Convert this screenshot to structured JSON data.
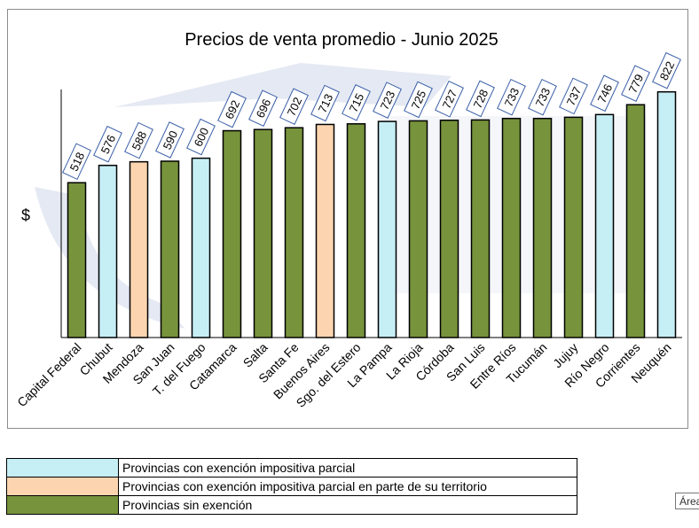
{
  "chart_data": {
    "type": "bar",
    "title": "Precios de venta promedio - Junio 2025",
    "ylabel": "$",
    "xlabel": "",
    "ylim": [
      0,
      830
    ],
    "categories": [
      "Capital Federal",
      "Chubut",
      "Mendoza",
      "San Juan",
      "T. del Fuego",
      "Catamarca",
      "Salta",
      "Santa Fe",
      "Buenos Aires",
      "Sgo. del Estero",
      "La Pampa",
      "La Rioja",
      "Córdoba",
      "San Luis",
      "Entre Ríos",
      "Tucumán",
      "Jujuy",
      "Río Negro",
      "Corrientes",
      "Neuquén"
    ],
    "values": [
      518,
      576,
      588,
      590,
      600,
      692,
      696,
      702,
      713,
      715,
      723,
      725,
      727,
      728,
      733,
      733,
      737,
      746,
      779,
      822
    ],
    "groups": [
      "sin",
      "parcial",
      "territorio",
      "sin",
      "parcial",
      "sin",
      "sin",
      "sin",
      "territorio",
      "sin",
      "parcial",
      "sin",
      "sin",
      "sin",
      "sin",
      "sin",
      "sin",
      "parcial",
      "sin",
      "parcial"
    ],
    "grid": false
  },
  "colors": {
    "parcial": "#c6eef5",
    "territorio": "#fcd5b0",
    "sin": "#77933c"
  },
  "legend": {
    "items": [
      {
        "key": "parcial",
        "label": "Provincias con exención impositiva parcial"
      },
      {
        "key": "territorio",
        "label": "Provincias con exención impositiva parcial en parte de su territorio"
      },
      {
        "key": "sin",
        "label": "Provincias sin exención"
      }
    ]
  },
  "tooltip": {
    "text": "Área"
  }
}
